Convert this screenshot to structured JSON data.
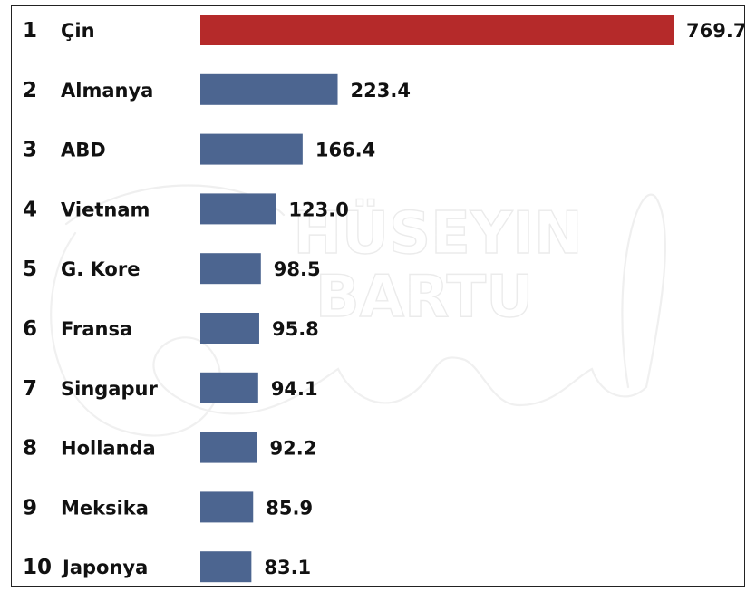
{
  "watermark": {
    "line1": "HÜSEYIN",
    "line2": "BARTU",
    "script": "Gural"
  },
  "chart_data": {
    "type": "bar",
    "orientation": "horizontal",
    "title": "",
    "xlabel": "",
    "ylabel": "",
    "grid": false,
    "legend": "none",
    "xlim": [
      0,
      769.7
    ],
    "ranks": [
      "1",
      "2",
      "3",
      "4",
      "5",
      "6",
      "7",
      "8",
      "9",
      "10"
    ],
    "categories": [
      "Çin",
      "Almanya",
      "ABD",
      "Vietnam",
      "G. Kore",
      "Fransa",
      "Singapur",
      "Hollanda",
      "Meksika",
      "Japonya"
    ],
    "values": [
      769.7,
      223.4,
      166.4,
      123.0,
      98.5,
      95.8,
      94.1,
      92.2,
      85.9,
      83.1
    ],
    "value_labels": [
      "769.7",
      "223.4",
      "166.4",
      "123.0",
      "98.5",
      "95.8",
      "94.1",
      "92.2",
      "85.9",
      "83.1"
    ],
    "colors": {
      "highlight": "#b52a2a",
      "default": "#4c6590"
    },
    "highlight_index": 0
  }
}
